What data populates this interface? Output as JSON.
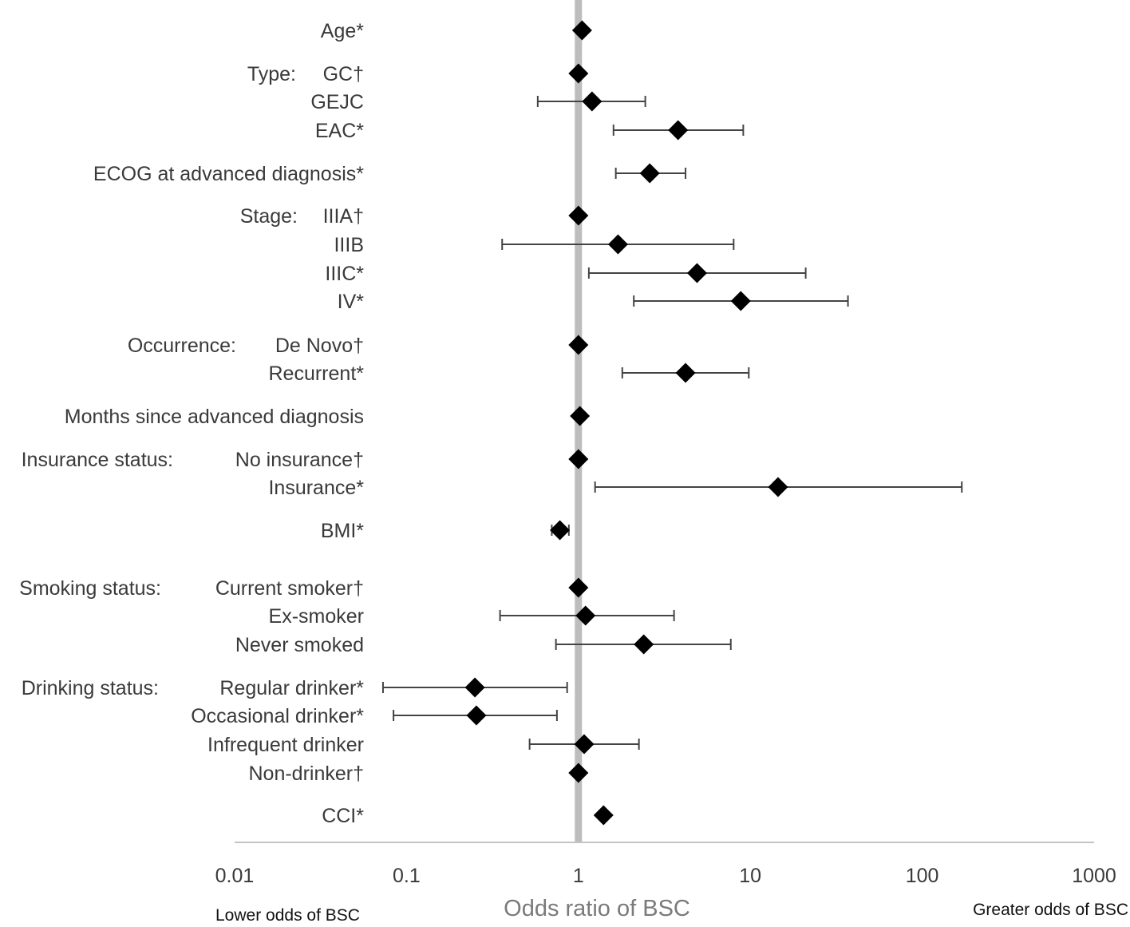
{
  "chart_data": {
    "type": "forest",
    "title": "",
    "xlabel": "Odds ratio of BSC",
    "xscale": "log",
    "xlim": [
      0.01,
      1000
    ],
    "reference_line": 1,
    "x_ticks": [
      "0.01",
      "0.1",
      "1",
      "10",
      "100",
      "1000"
    ],
    "left_note": "Lower odds of BSC",
    "right_note": "Greater odds of BSC",
    "rows": [
      {
        "group": "",
        "label": "Age*",
        "or": 1.05,
        "lo": null,
        "hi": null
      },
      {
        "group": "Type:",
        "label": "GC†",
        "or": 1.0,
        "lo": null,
        "hi": null
      },
      {
        "group": "",
        "label": "GEJC",
        "or": 1.2,
        "lo": 0.58,
        "hi": 2.45
      },
      {
        "group": "",
        "label": "EAC*",
        "or": 3.8,
        "lo": 1.6,
        "hi": 9.1
      },
      {
        "group": "",
        "label": "ECOG at advanced diagnosis*",
        "or": 2.6,
        "lo": 1.65,
        "hi": 4.2
      },
      {
        "group": "Stage:",
        "label": "IIIA†",
        "or": 1.0,
        "lo": null,
        "hi": null
      },
      {
        "group": "",
        "label": "IIIB",
        "or": 1.7,
        "lo": 0.36,
        "hi": 8.0
      },
      {
        "group": "",
        "label": "IIIC*",
        "or": 4.9,
        "lo": 1.15,
        "hi": 21.0
      },
      {
        "group": "",
        "label": "IV*",
        "or": 8.8,
        "lo": 2.1,
        "hi": 37.0
      },
      {
        "group": "Occurrence:",
        "label": "De Novo†",
        "or": 1.0,
        "lo": null,
        "hi": null
      },
      {
        "group": "",
        "label": "Recurrent*",
        "or": 4.2,
        "lo": 1.8,
        "hi": 9.8
      },
      {
        "group": "",
        "label": "Months since advanced diagnosis",
        "or": 1.02,
        "lo": null,
        "hi": null
      },
      {
        "group": "Insurance status:",
        "label": "No insurance†",
        "or": 1.0,
        "lo": null,
        "hi": null
      },
      {
        "group": "",
        "label": "Insurance*",
        "or": 14.5,
        "lo": 1.25,
        "hi": 170.0
      },
      {
        "group": "",
        "label": "BMI*",
        "or": 0.78,
        "lo": 0.7,
        "hi": 0.88
      },
      {
        "group": "Smoking status:",
        "label": "Current smoker†",
        "or": 1.0,
        "lo": null,
        "hi": null
      },
      {
        "group": "",
        "label": "Ex-smoker",
        "or": 1.1,
        "lo": 0.35,
        "hi": 3.6
      },
      {
        "group": "",
        "label": "Never smoked",
        "or": 2.4,
        "lo": 0.74,
        "hi": 7.7
      },
      {
        "group": "Drinking status:",
        "label": "Regular drinker*",
        "or": 0.25,
        "lo": 0.073,
        "hi": 0.86
      },
      {
        "group": "",
        "label": "Occasional drinker*",
        "or": 0.255,
        "lo": 0.084,
        "hi": 0.75
      },
      {
        "group": "",
        "label": "Infrequent drinker",
        "or": 1.08,
        "lo": 0.52,
        "hi": 2.25
      },
      {
        "group": "",
        "label": "Non-drinker†",
        "or": 1.0,
        "lo": null,
        "hi": null
      },
      {
        "group": "",
        "label": "CCI*",
        "or": 1.4,
        "lo": null,
        "hi": null
      }
    ]
  }
}
